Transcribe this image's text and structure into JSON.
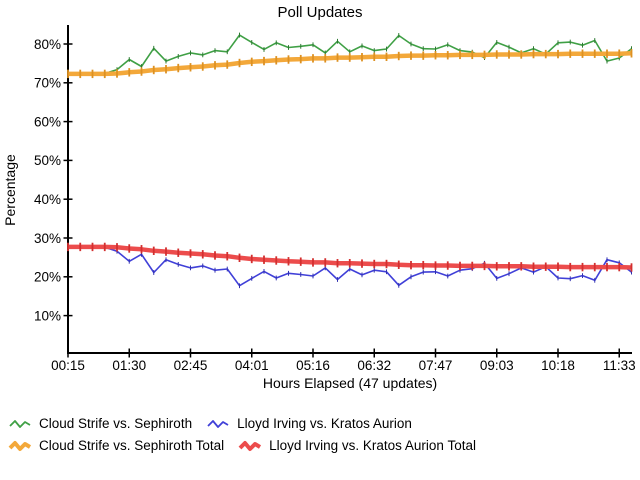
{
  "title": "Poll Updates",
  "chart_data": {
    "type": "line",
    "title": "Poll Updates",
    "xlabel": "Hours Elapsed (47 updates)",
    "ylabel": "Percentage",
    "n_points": 47,
    "ylim": [
      0,
      83
    ],
    "grid": false,
    "legend_position": "bottom-left",
    "y_ticks": [
      {
        "value": 80,
        "label": "80%"
      },
      {
        "value": 70,
        "label": "70%"
      },
      {
        "value": 60,
        "label": "60%"
      },
      {
        "value": 50,
        "label": "50%"
      },
      {
        "value": 40,
        "label": "40%"
      },
      {
        "value": 30,
        "label": "30%"
      },
      {
        "value": 20,
        "label": "20%"
      },
      {
        "value": 10,
        "label": "10%"
      }
    ],
    "x_ticks": [
      {
        "index": 0,
        "label": "00:15"
      },
      {
        "index": 5,
        "label": "01:30"
      },
      {
        "index": 10,
        "label": "02:45"
      },
      {
        "index": 15,
        "label": "04:01"
      },
      {
        "index": 20,
        "label": "05:16"
      },
      {
        "index": 25,
        "label": "06:32"
      },
      {
        "index": 30,
        "label": "07:47"
      },
      {
        "index": 35,
        "label": "09:03"
      },
      {
        "index": 40,
        "label": "10:18"
      },
      {
        "index": 45,
        "label": "11:33"
      }
    ],
    "series": [
      {
        "name": "Cloud Strife vs. Sephiroth",
        "color": "#3fa045",
        "marker_color": "#2d7a32",
        "width": 1.6,
        "values": [
          72.3,
          72.3,
          72.3,
          72.4,
          73.4,
          76.0,
          74.2,
          78.9,
          75.6,
          76.8,
          77.7,
          77.2,
          78.3,
          78.0,
          82.3,
          80.4,
          78.6,
          80.3,
          79.1,
          79.4,
          79.8,
          77.7,
          80.7,
          78.0,
          79.5,
          78.3,
          78.7,
          82.2,
          80.0,
          78.8,
          78.7,
          79.8,
          78.3,
          77.9,
          76.5,
          80.4,
          79.2,
          77.7,
          78.8,
          77.4,
          80.3,
          80.5,
          79.7,
          80.9,
          75.6,
          76.4,
          78.8
        ]
      },
      {
        "name": "Lloyd Irving vs. Kratos Aurion",
        "color": "#4040d8",
        "marker_color": "#3030b0",
        "width": 1.6,
        "values": [
          27.7,
          27.7,
          27.7,
          27.6,
          26.6,
          24.0,
          25.8,
          21.1,
          24.4,
          23.2,
          22.3,
          22.8,
          21.7,
          22.0,
          17.7,
          19.6,
          21.4,
          19.7,
          20.9,
          20.6,
          20.2,
          22.3,
          19.3,
          22.0,
          20.5,
          21.7,
          21.3,
          17.8,
          20.0,
          21.2,
          21.3,
          20.2,
          21.7,
          22.1,
          23.5,
          19.6,
          20.8,
          22.3,
          21.2,
          22.6,
          19.7,
          19.5,
          20.3,
          19.1,
          24.4,
          23.6,
          21.2
        ]
      },
      {
        "name": "Cloud Strife vs. Sephiroth Total",
        "color": "#f3a83a",
        "marker_color": "#dd9122",
        "width": 4.5,
        "values": [
          72.3,
          72.3,
          72.3,
          72.3,
          72.4,
          72.7,
          72.9,
          73.3,
          73.5,
          73.8,
          74.0,
          74.2,
          74.5,
          74.7,
          75.1,
          75.4,
          75.6,
          75.8,
          76.0,
          76.1,
          76.3,
          76.3,
          76.5,
          76.5,
          76.6,
          76.7,
          76.7,
          76.9,
          77.0,
          77.0,
          77.1,
          77.1,
          77.2,
          77.2,
          77.2,
          77.3,
          77.3,
          77.3,
          77.4,
          77.4,
          77.4,
          77.5,
          77.5,
          77.5,
          77.5,
          77.5,
          77.6
        ]
      },
      {
        "name": "Lloyd Irving vs. Kratos Aurion Total",
        "color": "#ec4c4c",
        "marker_color": "#d32f2f",
        "width": 4.5,
        "values": [
          27.7,
          27.7,
          27.7,
          27.7,
          27.6,
          27.3,
          27.1,
          26.7,
          26.5,
          26.2,
          26.0,
          25.8,
          25.5,
          25.3,
          24.9,
          24.6,
          24.4,
          24.2,
          24.0,
          23.9,
          23.7,
          23.7,
          23.5,
          23.5,
          23.4,
          23.3,
          23.3,
          23.1,
          23.0,
          23.0,
          22.9,
          22.9,
          22.8,
          22.8,
          22.8,
          22.7,
          22.7,
          22.7,
          22.6,
          22.6,
          22.6,
          22.5,
          22.5,
          22.5,
          22.5,
          22.5,
          22.4
        ]
      }
    ]
  }
}
